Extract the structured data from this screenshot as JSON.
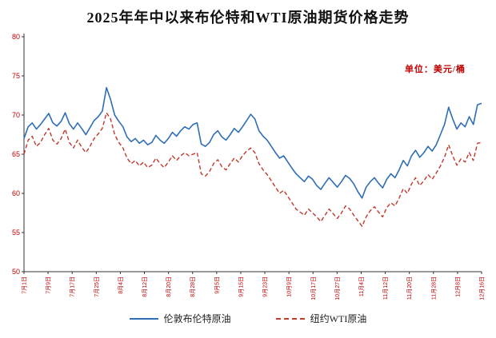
{
  "title": "2025年年中以来布伦特和WTI原油期货价格走势",
  "unit_label": "单位：美元/桶",
  "legend": {
    "brent": "伦敦布伦特原油",
    "wti": "纽约WTI原油"
  },
  "colors": {
    "axis": "#333333",
    "tick_label": "#c00000",
    "brent": "#2f6eb5",
    "wti": "#c0392b"
  },
  "chart_data": {
    "type": "line",
    "title": "2025年年中以来布伦特和WTI原油期货价格走势",
    "ylabel": "美元/桶",
    "ylim": [
      50,
      80
    ],
    "yticks": [
      80,
      75,
      70,
      65,
      60,
      55,
      50
    ],
    "grid": false,
    "legend_position": "bottom",
    "x_tick_labels": [
      "7月1日",
      "7月9日",
      "7月17日",
      "7月25日",
      "8月4日",
      "8月12日",
      "8月20日",
      "8月28日",
      "9月5日",
      "9月15日",
      "9月23日",
      "10月9日",
      "10月17日",
      "10月27日",
      "11月4日",
      "11月12日",
      "11月20日",
      "11月28日",
      "12月8日",
      "12月16日"
    ],
    "series": [
      {
        "name": "伦敦布伦特原油",
        "color": "#2f6eb5",
        "style": "solid",
        "values": [
          67.0,
          68.5,
          69.0,
          68.2,
          68.8,
          69.5,
          70.2,
          69.0,
          68.6,
          69.2,
          70.3,
          68.9,
          68.2,
          69.0,
          68.3,
          67.5,
          68.4,
          69.3,
          69.8,
          70.5,
          73.5,
          72.0,
          70.0,
          69.2,
          68.5,
          67.2,
          66.6,
          67.0,
          66.4,
          66.8,
          66.2,
          66.5,
          67.4,
          66.8,
          66.4,
          67.0,
          67.8,
          67.3,
          68.0,
          68.5,
          68.2,
          68.8,
          69.0,
          66.3,
          66.0,
          66.5,
          67.5,
          68.0,
          67.2,
          66.8,
          67.5,
          68.3,
          67.8,
          68.5,
          69.3,
          70.1,
          69.5,
          68.0,
          67.3,
          66.8,
          66.0,
          65.2,
          64.5,
          64.8,
          64.0,
          63.2,
          62.5,
          62.0,
          61.5,
          62.2,
          61.8,
          61.0,
          60.5,
          61.3,
          62.0,
          61.4,
          60.8,
          61.5,
          62.3,
          61.9,
          61.2,
          60.2,
          59.4,
          60.8,
          61.5,
          62.0,
          61.3,
          60.7,
          61.8,
          62.5,
          62.0,
          63.0,
          64.2,
          63.5,
          64.8,
          65.5,
          64.6,
          65.2,
          66.0,
          65.4,
          66.2,
          67.5,
          68.8,
          71.0,
          69.5,
          68.2,
          69.0,
          68.5,
          69.8,
          68.8,
          71.3,
          71.5
        ]
      },
      {
        "name": "纽约WTI原油",
        "color": "#c0392b",
        "style": "dashed",
        "values": [
          65.0,
          66.8,
          67.3,
          66.0,
          66.5,
          67.5,
          68.3,
          66.8,
          66.3,
          67.0,
          68.2,
          66.5,
          65.8,
          66.8,
          65.9,
          65.2,
          66.0,
          67.0,
          67.6,
          68.3,
          70.3,
          69.5,
          67.5,
          66.5,
          65.8,
          64.5,
          63.8,
          64.2,
          63.5,
          64.0,
          63.3,
          63.6,
          64.5,
          63.8,
          63.3,
          64.0,
          64.8,
          64.2,
          64.8,
          65.2,
          64.8,
          65.0,
          65.2,
          62.5,
          62.2,
          62.8,
          63.8,
          64.3,
          63.4,
          63.0,
          63.8,
          64.5,
          64.0,
          64.8,
          65.4,
          65.8,
          65.2,
          63.8,
          63.0,
          62.4,
          61.6,
          60.8,
          60.0,
          60.4,
          59.6,
          58.8,
          58.0,
          57.6,
          57.2,
          58.0,
          57.5,
          57.0,
          56.4,
          57.2,
          58.0,
          57.4,
          56.8,
          57.5,
          58.4,
          58.0,
          57.2,
          56.5,
          55.8,
          57.0,
          57.8,
          58.3,
          57.6,
          57.0,
          58.2,
          58.8,
          58.4,
          59.4,
          60.6,
          60.0,
          61.2,
          62.0,
          61.0,
          61.6,
          62.4,
          61.8,
          62.6,
          63.5,
          64.6,
          66.2,
          64.8,
          63.6,
          64.4,
          64.0,
          65.2,
          64.2,
          66.4,
          66.5
        ]
      }
    ]
  }
}
